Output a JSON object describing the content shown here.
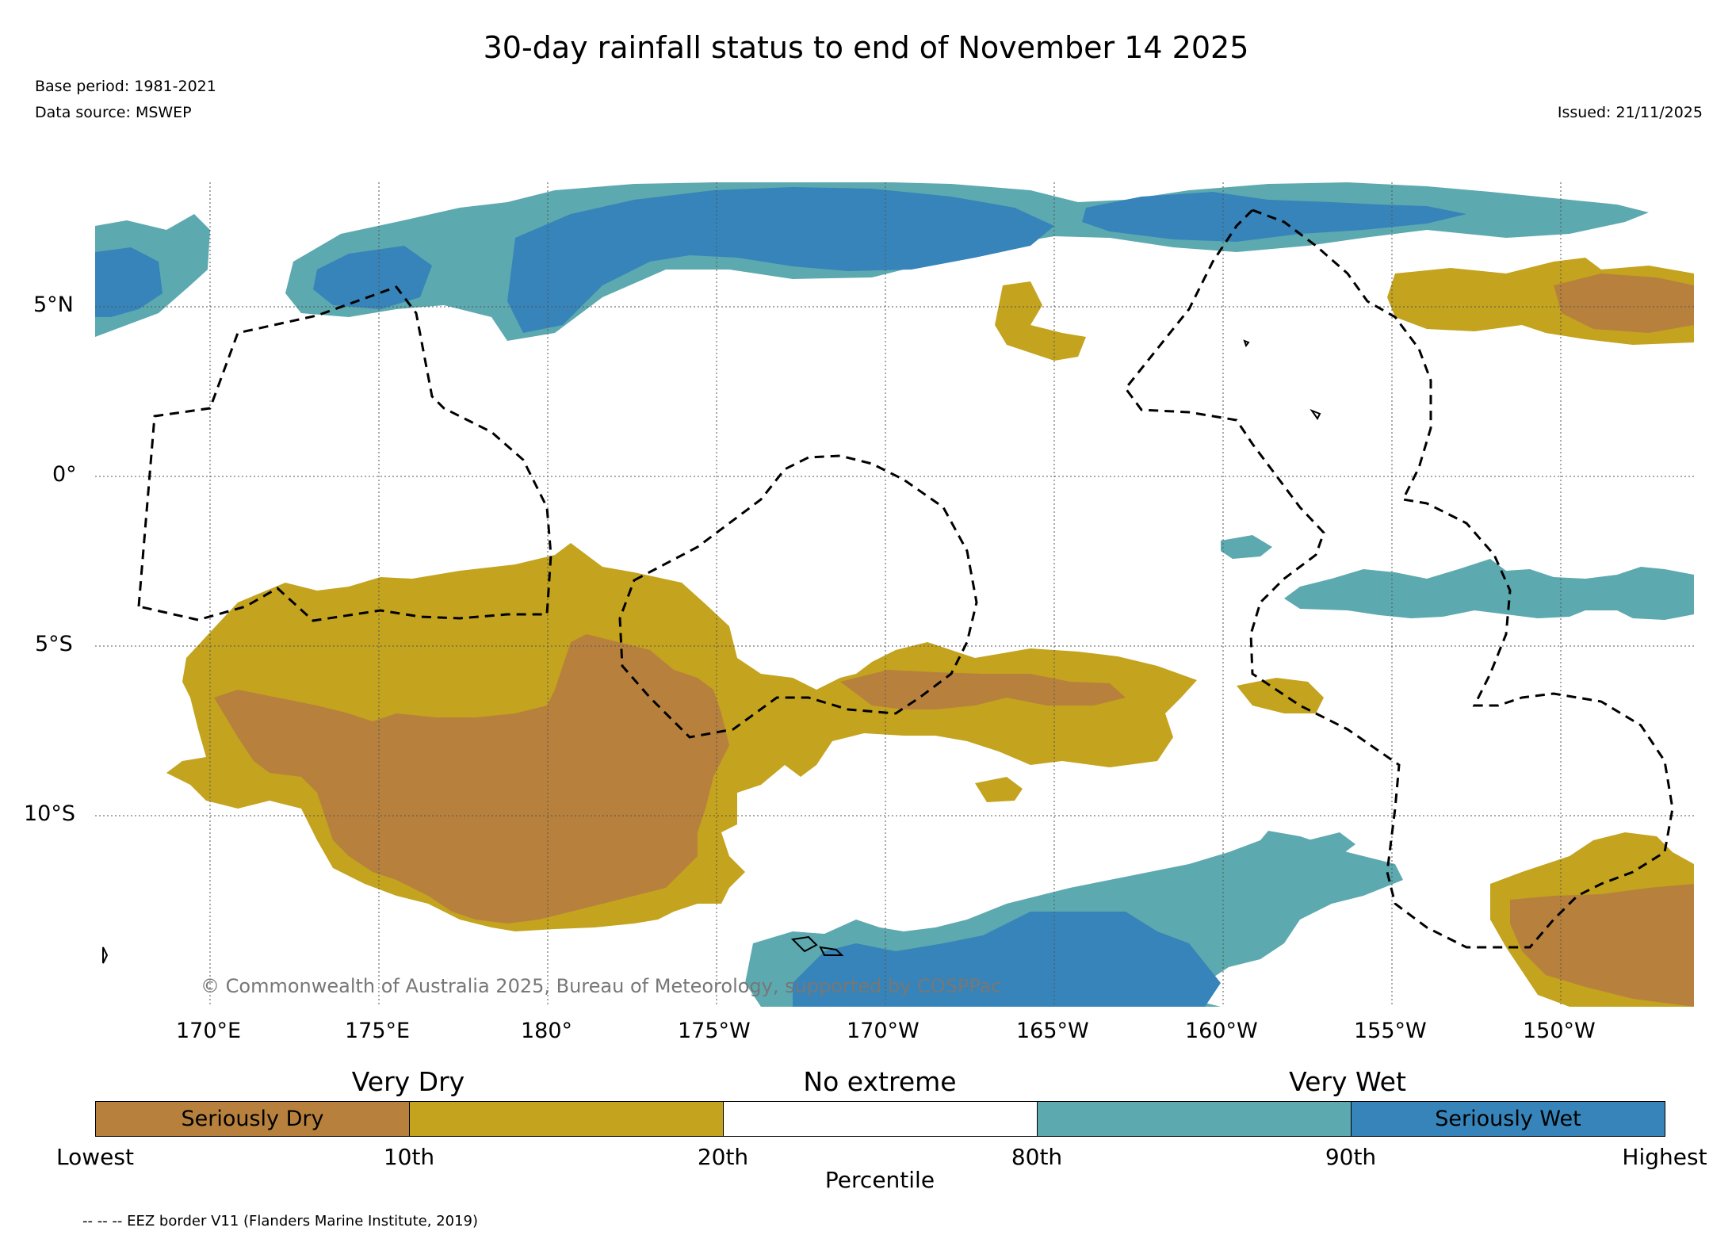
{
  "title": "30-day rainfall status to end of November 14 2025",
  "base_period": "Base period: 1981-2021",
  "data_source": "Data source: MSWEP",
  "issued": "Issued: 21/11/2025",
  "copyright": "© Commonwealth of Australia 2025, Bureau of Meteorology, supported by COSPPac",
  "eez_note": "-- -- -- EEZ border V11 (Flanders Marine Institute, 2019)",
  "lat_labels": [
    "5°N",
    "0°",
    "5°S",
    "10°S"
  ],
  "lon_labels": [
    "170°E",
    "175°E",
    "180°",
    "175°W",
    "170°W",
    "165°W",
    "160°W",
    "155°W",
    "150°W"
  ],
  "legend": {
    "groups": [
      "Very Dry",
      "No extreme",
      "Very Wet"
    ],
    "categories": [
      {
        "label": "Seriously Dry",
        "color": "#b7813d"
      },
      {
        "label": "",
        "color": "#c4a31e"
      },
      {
        "label": "",
        "color": "#ffffff"
      },
      {
        "label": "",
        "color": "#5ca9b0"
      },
      {
        "label": "Seriously Wet",
        "color": "#3684b9"
      }
    ],
    "ticks": [
      "Lowest",
      "10th",
      "20th",
      "80th",
      "90th",
      "Highest"
    ],
    "axis_title": "Percentile"
  },
  "colors": {
    "seriously_dry": "#b7813d",
    "very_dry": "#c4a31e",
    "very_wet": "#5ca9b0",
    "seriously_wet": "#3684b9",
    "eez": "#000000"
  }
}
